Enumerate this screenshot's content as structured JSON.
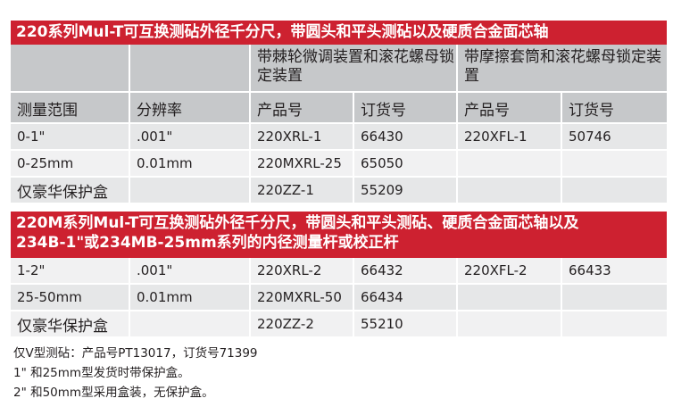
{
  "section1": {
    "title": "220系列Mul-T可互换测砧外径千分尺，带圆头和平头测砧以及硬质合金面芯轴",
    "group_headers": [
      "带棘轮微调装置和滚花螺母锁定装置",
      "带摩擦套筒和滚花螺母锁定装置"
    ],
    "columns": [
      "测量范围",
      "分辨率",
      "产品号",
      "订货号",
      "产品号",
      "订货号"
    ],
    "rows": [
      [
        "0-1\"",
        ".001\"",
        "220XRL-1",
        "66430",
        "220XFL-1",
        "50746"
      ],
      [
        "0-25mm",
        "0.01mm",
        "220MXRL-25",
        "65050",
        "",
        ""
      ],
      [
        "仅豪华保护盒",
        "",
        "220ZZ-1",
        "55209",
        "",
        ""
      ]
    ]
  },
  "section2": {
    "title_line1": "220M系列Mul-T可互换测砧外径千分尺，带圆头和平头测砧、硬质合金面芯轴以及",
    "title_line2": "234B-1\"或234MB-25mm系列的内径测量杆或校正杆",
    "rows": [
      [
        "1-2\"",
        ".001\"",
        "220XRL-2",
        "66432",
        "220XFL-2",
        "66433"
      ],
      [
        "25-50mm",
        "0.01mm",
        "220MXRL-50",
        "66434",
        "",
        ""
      ],
      [
        "仅豪华保护盒",
        "",
        "220ZZ-2",
        "55210",
        "",
        ""
      ]
    ]
  },
  "notes": [
    "仅V型测砧：产品号PT13017，订货号71399",
    "1\" 和25mm型发货时带保护盒。",
    "2\" 和50mm型采用盒装，无保护盒。"
  ],
  "colors": {
    "band": "#cd2130",
    "header": "#c6c8ca",
    "row_dark": "#e6e7e8",
    "row_light": "#f1f1f2"
  }
}
